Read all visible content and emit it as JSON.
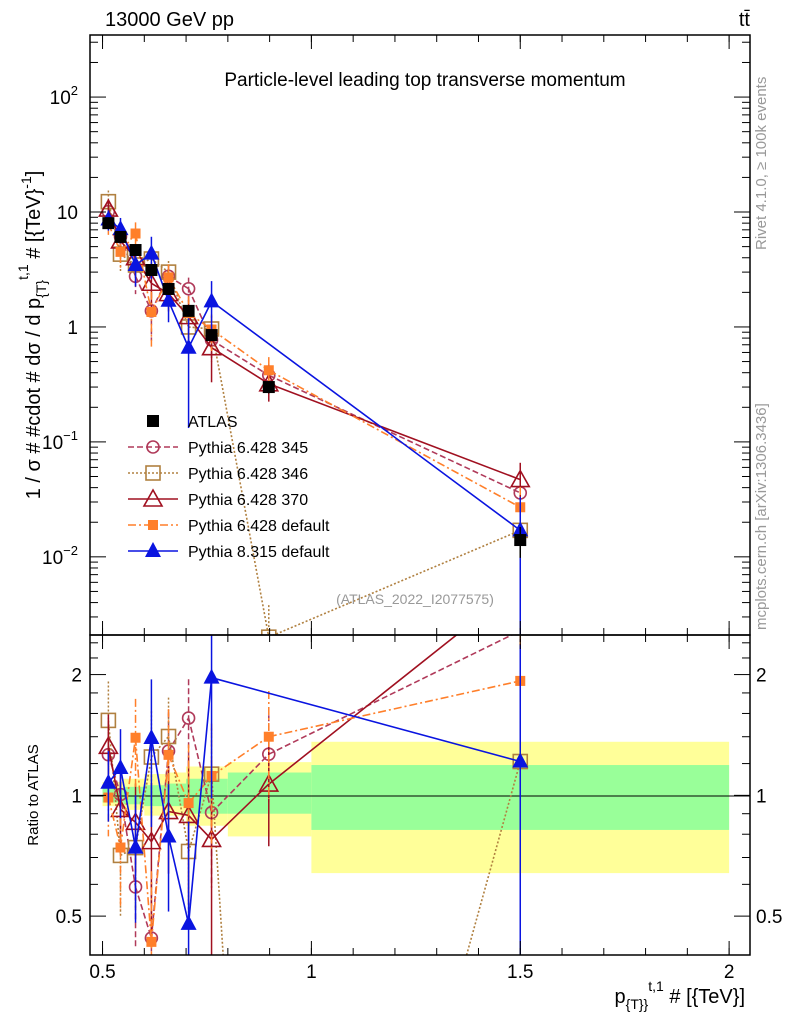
{
  "header": {
    "energy_label": "13000 GeV pp",
    "process_label": "tt̄"
  },
  "side": {
    "rivet_label": "Rivet 4.1.0, ≥ 100k events",
    "mcplots_label": "mcplots.cern.ch [arXiv:1306.3436]"
  },
  "chart_data": {
    "type": "scatter",
    "title": "Particle-level leading top transverse momentum",
    "analysis_label": "(ATLAS_2022_I2077575)",
    "xlabel": {
      "main": "p",
      "sub": "{T}}",
      "sup": "t,1",
      "rest": " # [{TeV}]"
    },
    "ylabel": {
      "main": "1 / σ # #cdot # dσ / d p",
      "sub": "{T}",
      "sup": "t,1",
      "rest": " # [{TeV}",
      "sup2": "-1",
      "end": "]"
    },
    "ratio_ylabel": "Ratio to ATLAS",
    "xlim": [
      0.47,
      2.05
    ],
    "ylim_log10": [
      -2.68,
      2.54
    ],
    "ratio_ylim": [
      0.4,
      2.51
    ],
    "x_ticks": [
      {
        "v": 0.5,
        "label": "0.5"
      },
      {
        "v": 1,
        "label": "1"
      },
      {
        "v": 1.5,
        "label": "1.5"
      },
      {
        "v": 2,
        "label": "2"
      }
    ],
    "y_ticks": [
      {
        "e": 2,
        "label": "10",
        "sup": "2"
      },
      {
        "e": 1,
        "label": "10",
        "sup": ""
      },
      {
        "e": 0,
        "label": "1",
        "sup": ""
      },
      {
        "e": -1,
        "label": "10",
        "sup": "−1"
      },
      {
        "e": -2,
        "label": "10",
        "sup": "−2"
      }
    ],
    "ratio_ticks": [
      {
        "v": 2,
        "label": "2"
      },
      {
        "v": 1,
        "label": "1"
      },
      {
        "v": 0.5,
        "label": "0.5"
      }
    ],
    "x": [
      0.514,
      0.543,
      0.579,
      0.617,
      0.658,
      0.706,
      0.761,
      0.898,
      1.5
    ],
    "reference": {
      "name": "ATLAS",
      "color": "#000000",
      "values": [
        8.0,
        6.07,
        4.67,
        3.13,
        2.14,
        1.38,
        0.85,
        0.3,
        0.014
      ],
      "rel_err": [
        0.05,
        0.05,
        0.05,
        0.06,
        0.06,
        0.08,
        0.1,
        0.12,
        0.3
      ]
    },
    "bands": [
      {
        "x0": 0.5,
        "x1": 0.55,
        "green": [
          0.96,
          1.04
        ],
        "yellow": [
          0.94,
          1.08
        ]
      },
      {
        "x0": 0.55,
        "x1": 0.6,
        "green": [
          0.95,
          1.05
        ],
        "yellow": [
          0.92,
          1.1
        ]
      },
      {
        "x0": 0.6,
        "x1": 0.65,
        "green": [
          0.94,
          1.06
        ],
        "yellow": [
          0.89,
          1.13
        ]
      },
      {
        "x0": 0.65,
        "x1": 0.7,
        "green": [
          0.94,
          1.07
        ],
        "yellow": [
          0.89,
          1.14
        ]
      },
      {
        "x0": 0.7,
        "x1": 0.8,
        "green": [
          0.9,
          1.1
        ],
        "yellow": [
          0.84,
          1.18
        ]
      },
      {
        "x0": 0.8,
        "x1": 1.0,
        "green": [
          0.9,
          1.14
        ],
        "yellow": [
          0.79,
          1.21
        ]
      },
      {
        "x0": 1.0,
        "x1": 2.0,
        "green": [
          0.82,
          1.19
        ],
        "yellow": [
          0.64,
          1.36
        ]
      }
    ],
    "series": [
      {
        "name": "Pythia 6.428 345",
        "color": "#b03a5a",
        "marker": "open-circle",
        "dash": "6,3",
        "values": [
          10.1,
          6.1,
          2.76,
          1.38,
          2.76,
          2.15,
          0.77,
          0.38,
          0.036
        ],
        "rel_err": [
          0.2,
          0.2,
          0.3,
          0.45,
          0.25,
          0.25,
          0.35,
          0.25,
          0.6
        ]
      },
      {
        "name": "Pythia 6.428 346",
        "color": "#b08040",
        "marker": "open-square",
        "dash": "2,2",
        "values": [
          12.3,
          4.3,
          3.46,
          3.9,
          3.0,
          1.0,
          0.96,
          0.002,
          0.017
        ],
        "rel_err": [
          0.25,
          0.3,
          0.3,
          0.3,
          0.25,
          0.35,
          0.3,
          0.9,
          0.6
        ]
      },
      {
        "name": "Pythia 6.428 370",
        "color": "#a01020",
        "marker": "open-triangle",
        "dash": "",
        "values": [
          10.6,
          5.6,
          4.0,
          2.4,
          1.95,
          1.23,
          0.66,
          0.32,
          0.047
        ],
        "rel_err": [
          0.2,
          0.2,
          0.25,
          0.4,
          0.3,
          0.4,
          0.5,
          0.3,
          0.4
        ]
      },
      {
        "name": "Pythia 6.428 default",
        "color": "#ff7f2a",
        "marker": "filled-square",
        "dash": "8,3,2,3",
        "values": [
          7.9,
          4.5,
          6.5,
          1.35,
          2.7,
          1.32,
          0.95,
          0.42,
          0.027
        ],
        "rel_err": [
          0.2,
          0.3,
          0.25,
          0.5,
          0.3,
          0.4,
          0.35,
          0.3,
          0.5
        ]
      },
      {
        "name": "Pythia 8.315 default",
        "color": "#0a14e0",
        "marker": "filled-triangle",
        "dash": "",
        "values": [
          8.6,
          7.1,
          3.46,
          4.35,
          1.69,
          0.66,
          1.67,
          null,
          0.017
        ],
        "rel_err": [
          0.2,
          0.25,
          0.35,
          0.4,
          0.35,
          0.8,
          0.5,
          null,
          0.95
        ]
      }
    ],
    "legend_placement": "center-left",
    "grid": false
  }
}
